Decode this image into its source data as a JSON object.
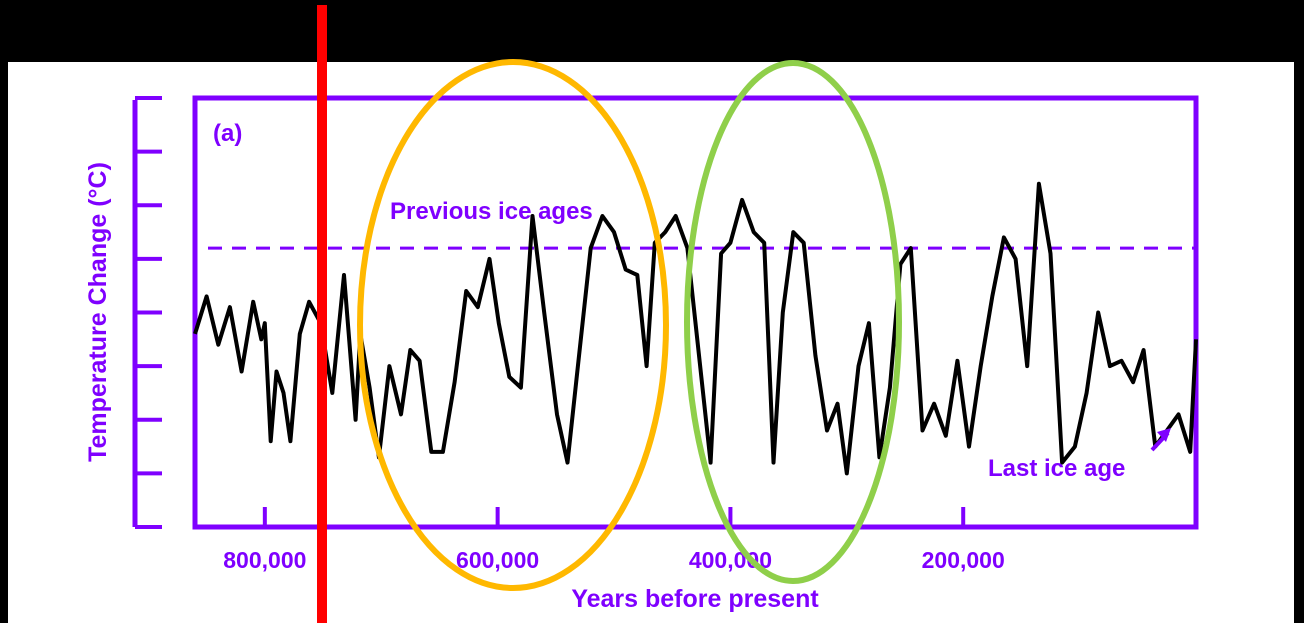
{
  "chart_data": {
    "type": "line",
    "panel_label": "(a)",
    "xlabel": "Years before present",
    "ylabel": "Temperature Change (°C)",
    "x_reversed": true,
    "xlim": [
      860000,
      0
    ],
    "x_ticks": [
      800000,
      600000,
      400000,
      200000
    ],
    "x_tick_labels": [
      "800,000",
      "600,000",
      "400,000",
      "200,000"
    ],
    "ylim": [
      0,
      8
    ],
    "y_ticks_unlabeled": [
      0,
      1,
      2,
      3,
      4,
      5,
      6,
      7,
      8
    ],
    "reference_line_y": 5.2,
    "reference_line_label": "Previous ice ages",
    "last_ice_age_label": "Last ice age",
    "series": [
      {
        "x": [
          860000,
          850000,
          840000,
          830000,
          820000,
          810000,
          803000,
          800000,
          795000,
          790000,
          784000,
          778000,
          770000,
          762000,
          752000,
          742000,
          732000,
          722000,
          718000,
          710000,
          702000,
          693000,
          683000,
          675000,
          667000,
          657000,
          647000,
          637000,
          627000,
          617000,
          607000,
          599000,
          590000,
          580000,
          570000,
          560000,
          549000,
          540000,
          531000,
          520000,
          510000,
          500000,
          490000,
          480000,
          472000,
          465000,
          456000,
          447000,
          437000,
          427000,
          417000,
          408000,
          400000,
          390000,
          380000,
          371000,
          363000,
          355000,
          346000,
          337000,
          327000,
          317000,
          308000,
          300000,
          290000,
          281000,
          272000,
          263000,
          254000,
          245000,
          235000,
          225000,
          215000,
          205000,
          195000,
          185000,
          175000,
          165000,
          155000,
          145000,
          135000,
          125000,
          115000,
          104000,
          94000,
          84000,
          74000,
          64000,
          54000,
          45000,
          35000,
          25000,
          15000,
          5000,
          0
        ],
        "y": [
          3.6,
          4.3,
          3.4,
          4.1,
          2.9,
          4.2,
          3.5,
          3.8,
          1.6,
          2.9,
          2.5,
          1.6,
          3.6,
          4.2,
          3.8,
          2.5,
          4.7,
          2.0,
          3.6,
          2.6,
          1.3,
          3.0,
          2.1,
          3.3,
          3.1,
          1.4,
          1.4,
          2.7,
          4.4,
          4.1,
          5.0,
          3.8,
          2.8,
          2.6,
          5.8,
          4.0,
          2.1,
          1.2,
          3.0,
          5.2,
          5.8,
          5.5,
          4.8,
          4.7,
          3.0,
          5.3,
          5.5,
          5.8,
          5.2,
          3.2,
          1.2,
          5.1,
          5.3,
          6.1,
          5.5,
          5.3,
          1.2,
          4.0,
          5.5,
          5.3,
          3.2,
          1.8,
          2.3,
          1.0,
          3.0,
          3.8,
          1.3,
          2.6,
          4.9,
          5.2,
          1.8,
          2.3,
          1.7,
          3.1,
          1.5,
          3.0,
          4.3,
          5.4,
          5.0,
          3.0,
          6.4,
          5.1,
          1.2,
          1.5,
          2.5,
          4.0,
          3.0,
          3.1,
          2.7,
          3.3,
          1.5,
          1.8,
          2.1,
          1.4,
          3.5
        ]
      }
    ],
    "overlays": {
      "red_line_color": "#ff0000",
      "orange_ellipse_color": "#ffb800",
      "green_ellipse_color": "#8fcf4a"
    }
  },
  "colors": {
    "axis": "#7f00ff",
    "series": "#000000",
    "background": "#ffffff",
    "frame": "#000000"
  }
}
